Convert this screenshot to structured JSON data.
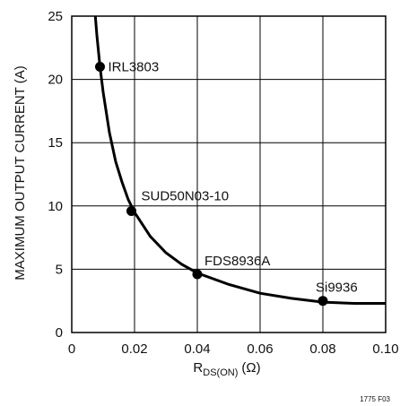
{
  "chart_data": {
    "type": "line",
    "title": "",
    "xlabel": {
      "main": "R",
      "sub": "DS(ON)",
      "unit": "(Ω)"
    },
    "ylabel": "MAXIMUM OUTPUT CURRENT (A)",
    "xlim": [
      0,
      0.1
    ],
    "ylim": [
      0,
      25
    ],
    "x_ticks": [
      "0",
      "0.02",
      "0.04",
      "0.06",
      "0.08",
      "0.10"
    ],
    "y_ticks": [
      "0",
      "5",
      "10",
      "15",
      "20",
      "25"
    ],
    "grid": true,
    "series": [
      {
        "x": [
          0.0075,
          0.008,
          0.009,
          0.01,
          0.012,
          0.014,
          0.016,
          0.018,
          0.02,
          0.025,
          0.03,
          0.035,
          0.04,
          0.05,
          0.06,
          0.07,
          0.08,
          0.09,
          0.1
        ],
        "y": [
          25.0,
          23.5,
          21.0,
          19.0,
          15.8,
          13.5,
          11.9,
          10.5,
          9.5,
          7.6,
          6.3,
          5.4,
          4.7,
          3.8,
          3.1,
          2.7,
          2.4,
          2.3,
          2.3
        ]
      }
    ],
    "points": [
      {
        "label": "IRL3803",
        "x": 0.009,
        "y": 21.0
      },
      {
        "label": "SUD50N03-10",
        "x": 0.019,
        "y": 9.6
      },
      {
        "label": "FDS8936A",
        "x": 0.04,
        "y": 4.6
      },
      {
        "label": "Si9936",
        "x": 0.08,
        "y": 2.5
      }
    ]
  },
  "figure_id": "1775 F03"
}
